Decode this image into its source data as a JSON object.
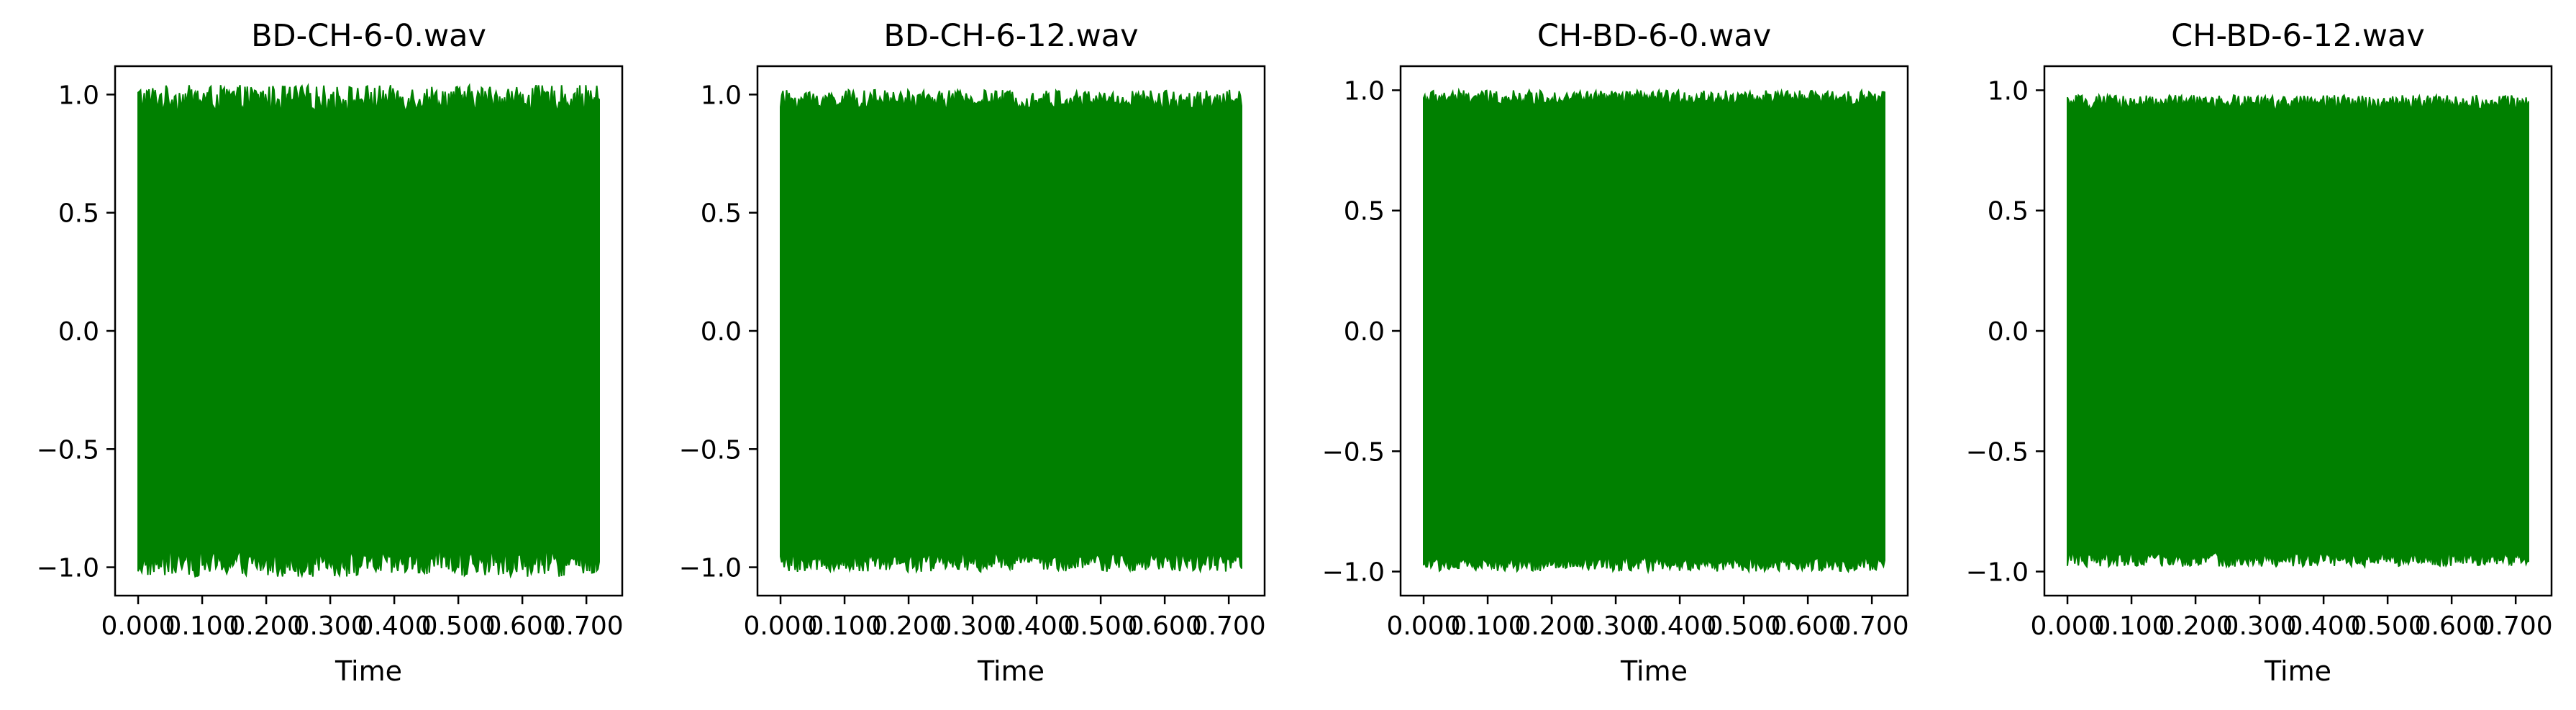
{
  "colors": {
    "waveform": "#008000",
    "axes": "#000000",
    "background": "#ffffff"
  },
  "chart_data": [
    {
      "type": "area",
      "title": "BD-CH-6-0.wav",
      "xlabel": "Time",
      "ylabel": "",
      "xlim": [
        -0.036,
        0.756
      ],
      "ylim": [
        -1.12,
        1.12
      ],
      "x_ticks": [
        "0.000",
        "0.100",
        "0.200",
        "0.300",
        "0.400",
        "0.500",
        "0.600",
        "0.700"
      ],
      "y_ticks": [
        "1.0",
        "0.5",
        "0.0",
        "−0.5",
        "−1.0"
      ],
      "duration": 0.72,
      "grid": false,
      "series": [
        {
          "upper_range": [
            0.93,
            1.04
          ],
          "lower_range": [
            -1.04,
            -0.93
          ]
        }
      ]
    },
    {
      "type": "area",
      "title": "BD-CH-6-12.wav",
      "xlabel": "Time",
      "ylabel": "",
      "xlim": [
        -0.036,
        0.756
      ],
      "ylim": [
        -1.12,
        1.12
      ],
      "x_ticks": [
        "0.000",
        "0.100",
        "0.200",
        "0.300",
        "0.400",
        "0.500",
        "0.600",
        "0.700"
      ],
      "y_ticks": [
        "1.0",
        "0.5",
        "0.0",
        "−0.5",
        "−1.0"
      ],
      "duration": 0.72,
      "grid": false,
      "series": [
        {
          "upper_range": [
            0.94,
            1.02
          ],
          "lower_range": [
            -1.02,
            -0.94
          ]
        }
      ]
    },
    {
      "type": "area",
      "title": "CH-BD-6-0.wav",
      "xlabel": "Time",
      "ylabel": "",
      "xlim": [
        -0.036,
        0.756
      ],
      "ylim": [
        -1.1,
        1.1
      ],
      "x_ticks": [
        "0.000",
        "0.100",
        "0.200",
        "0.300",
        "0.400",
        "0.500",
        "0.600",
        "0.700"
      ],
      "y_ticks": [
        "1.0",
        "0.5",
        "0.0",
        "−0.5",
        "−1.0"
      ],
      "duration": 0.72,
      "grid": false,
      "series": [
        {
          "upper_range": [
            0.94,
            1.0
          ],
          "lower_range": [
            -1.0,
            -0.94
          ]
        }
      ]
    },
    {
      "type": "area",
      "title": "CH-BD-6-12.wav",
      "xlabel": "Time",
      "ylabel": "",
      "xlim": [
        -0.036,
        0.756
      ],
      "ylim": [
        -1.1,
        1.1
      ],
      "x_ticks": [
        "0.000",
        "0.100",
        "0.200",
        "0.300",
        "0.400",
        "0.500",
        "0.600",
        "0.700"
      ],
      "y_ticks": [
        "1.0",
        "0.5",
        "0.0",
        "−0.5",
        "−1.0"
      ],
      "duration": 0.72,
      "grid": false,
      "series": [
        {
          "upper_range": [
            0.92,
            0.98
          ],
          "lower_range": [
            -0.98,
            -0.92
          ]
        }
      ]
    }
  ]
}
